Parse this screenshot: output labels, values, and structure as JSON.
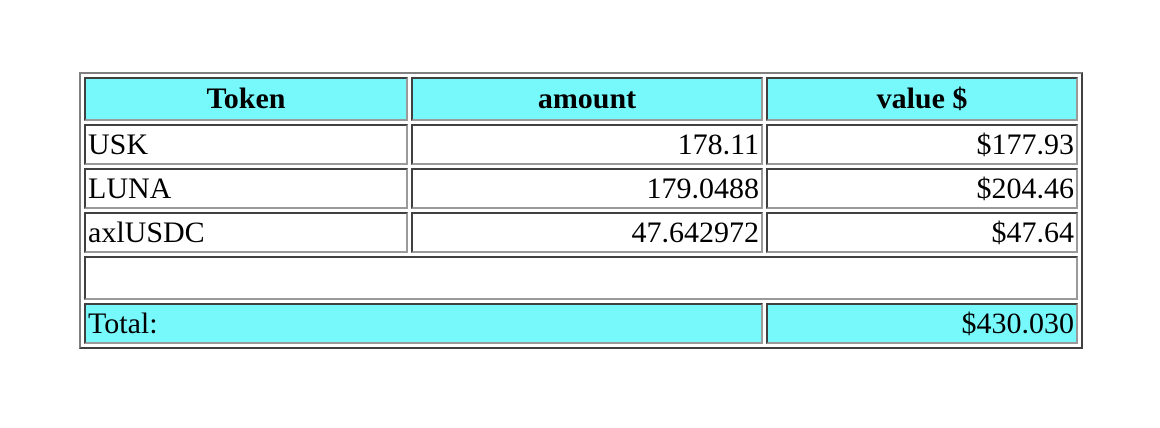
{
  "table": {
    "headers": [
      "Token",
      "amount",
      "value $"
    ],
    "rows": [
      {
        "token": "USK",
        "amount": "178.11",
        "value": "$177.93"
      },
      {
        "token": "LUNA",
        "amount": "179.0488",
        "value": "$204.46"
      },
      {
        "token": "axlUSDC",
        "amount": "47.642972",
        "value": "$47.64"
      }
    ],
    "total_label": "Total:",
    "total_value": "$430.030",
    "highlight_color": "#77f8fb"
  }
}
